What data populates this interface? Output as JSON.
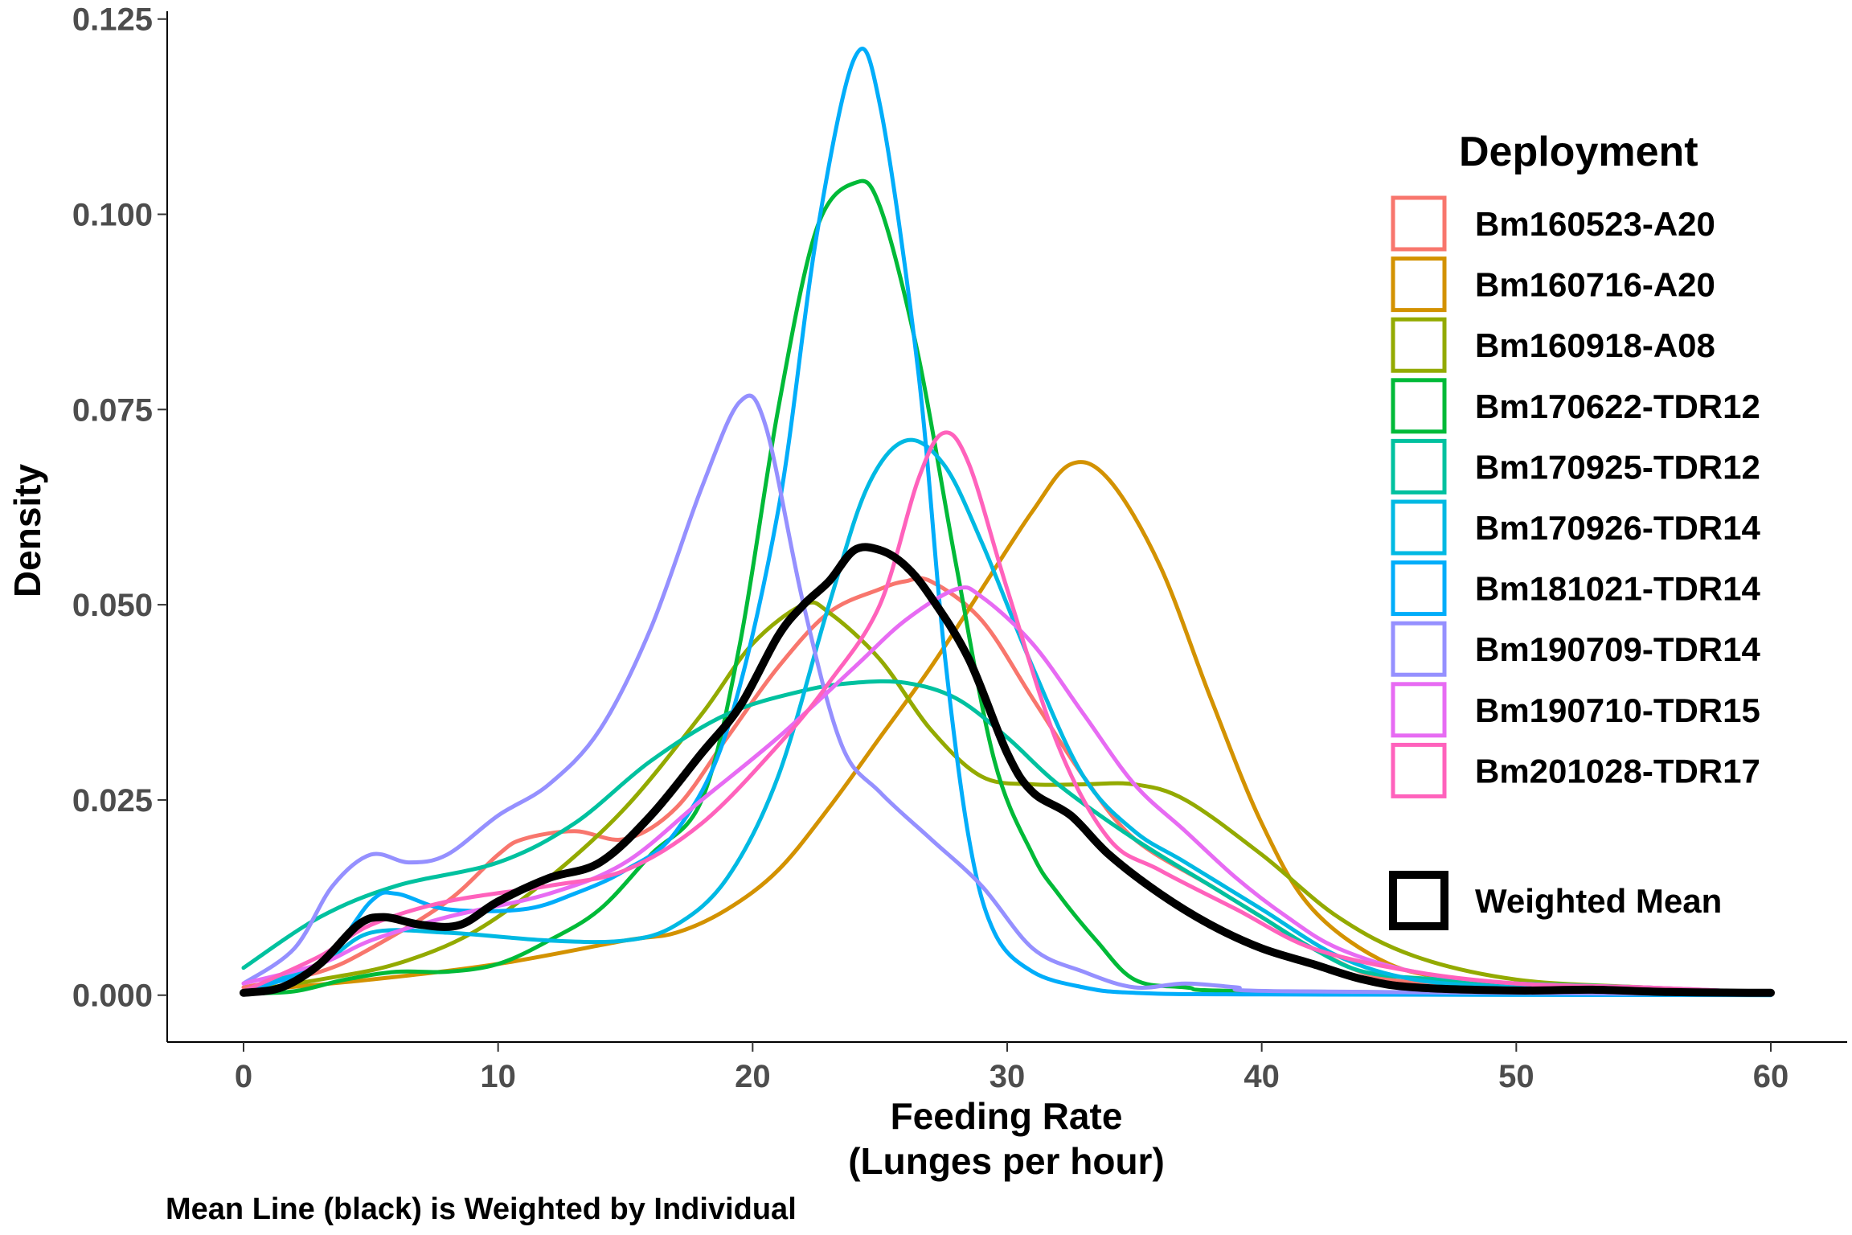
{
  "chart_data": {
    "type": "line",
    "xlabel_line1": "Feeding Rate",
    "xlabel_line2": "(Lunges per hour)",
    "ylabel": "Density",
    "caption": "Mean Line (black) is Weighted by Individual",
    "xlim": [
      -3,
      63
    ],
    "ylim": [
      -0.006,
      0.126
    ],
    "xticks": [
      0,
      10,
      20,
      30,
      40,
      50,
      60
    ],
    "xtick_labels": [
      "0",
      "10",
      "20",
      "30",
      "40",
      "50",
      "60"
    ],
    "yticks": [
      0,
      0.025,
      0.05,
      0.075,
      0.1,
      0.125
    ],
    "ytick_labels": [
      "0.000",
      "0.025",
      "0.050",
      "0.075",
      "0.100",
      "0.125"
    ],
    "grid": false,
    "legend": {
      "title": "Deployment",
      "placement": "right",
      "mean_label": "Weighted Mean"
    },
    "series": [
      {
        "name": "Bm160523-A20",
        "color": "#F8766D",
        "points": [
          [
            0,
            0.001
          ],
          [
            3,
            0.003
          ],
          [
            5,
            0.006
          ],
          [
            8,
            0.012
          ],
          [
            10,
            0.018
          ],
          [
            11,
            0.02
          ],
          [
            13,
            0.021
          ],
          [
            15,
            0.02
          ],
          [
            17,
            0.024
          ],
          [
            19,
            0.033
          ],
          [
            21,
            0.042
          ],
          [
            23,
            0.049
          ],
          [
            25,
            0.052
          ],
          [
            26,
            0.053
          ],
          [
            27,
            0.053
          ],
          [
            29,
            0.048
          ],
          [
            31,
            0.038
          ],
          [
            33,
            0.028
          ],
          [
            35,
            0.02
          ],
          [
            38,
            0.014
          ],
          [
            40,
            0.01
          ],
          [
            42,
            0.006
          ],
          [
            45,
            0.002
          ],
          [
            50,
            0.0015
          ],
          [
            53,
            0.001
          ],
          [
            57,
            0.0005
          ],
          [
            60,
            0.0002
          ]
        ]
      },
      {
        "name": "Bm160716-A20",
        "color": "#D39200",
        "points": [
          [
            0,
            0.0005
          ],
          [
            5,
            0.002
          ],
          [
            10,
            0.004
          ],
          [
            15,
            0.007
          ],
          [
            17,
            0.008
          ],
          [
            19,
            0.011
          ],
          [
            21,
            0.016
          ],
          [
            23,
            0.024
          ],
          [
            25,
            0.033
          ],
          [
            27,
            0.042
          ],
          [
            29,
            0.052
          ],
          [
            31,
            0.062
          ],
          [
            32.5,
            0.068
          ],
          [
            34,
            0.066
          ],
          [
            36,
            0.055
          ],
          [
            38,
            0.038
          ],
          [
            40,
            0.022
          ],
          [
            42,
            0.011
          ],
          [
            45,
            0.004
          ],
          [
            48,
            0.002
          ],
          [
            52,
            0.001
          ],
          [
            56,
            0.0005
          ],
          [
            60,
            0.0002
          ]
        ]
      },
      {
        "name": "Bm160918-A08",
        "color": "#93AA00",
        "points": [
          [
            0,
            0.0005
          ],
          [
            3,
            0.002
          ],
          [
            6,
            0.004
          ],
          [
            9,
            0.008
          ],
          [
            12,
            0.015
          ],
          [
            15,
            0.024
          ],
          [
            18,
            0.036
          ],
          [
            20,
            0.045
          ],
          [
            22,
            0.05
          ],
          [
            23,
            0.049
          ],
          [
            25,
            0.043
          ],
          [
            27,
            0.034
          ],
          [
            29,
            0.028
          ],
          [
            31,
            0.027
          ],
          [
            33,
            0.027
          ],
          [
            35,
            0.027
          ],
          [
            37,
            0.025
          ],
          [
            40,
            0.018
          ],
          [
            43,
            0.01
          ],
          [
            46,
            0.005
          ],
          [
            50,
            0.002
          ],
          [
            55,
            0.001
          ],
          [
            60,
            0.0003
          ]
        ]
      },
      {
        "name": "Bm170622-TDR12",
        "color": "#00BA38",
        "points": [
          [
            0,
            0.0002
          ],
          [
            2,
            0.0005
          ],
          [
            4,
            0.002
          ],
          [
            6,
            0.003
          ],
          [
            8,
            0.003
          ],
          [
            10,
            0.004
          ],
          [
            12,
            0.007
          ],
          [
            14,
            0.011
          ],
          [
            16,
            0.018
          ],
          [
            18,
            0.025
          ],
          [
            19.5,
            0.045
          ],
          [
            21,
            0.075
          ],
          [
            22.5,
            0.098
          ],
          [
            24,
            0.104
          ],
          [
            25,
            0.101
          ],
          [
            26.5,
            0.082
          ],
          [
            28,
            0.055
          ],
          [
            29.5,
            0.03
          ],
          [
            31,
            0.018
          ],
          [
            32,
            0.013
          ],
          [
            33.5,
            0.007
          ],
          [
            35,
            0.002
          ],
          [
            37,
            0.001
          ],
          [
            40,
            0.0005
          ],
          [
            60,
            0.0001
          ]
        ]
      },
      {
        "name": "Bm170925-TDR12",
        "color": "#00C19F",
        "points": [
          [
            0,
            0.0035
          ],
          [
            3,
            0.01
          ],
          [
            6,
            0.014
          ],
          [
            10,
            0.017
          ],
          [
            13,
            0.022
          ],
          [
            16,
            0.03
          ],
          [
            19,
            0.036
          ],
          [
            22,
            0.039
          ],
          [
            24,
            0.04
          ],
          [
            26,
            0.04
          ],
          [
            28,
            0.038
          ],
          [
            30,
            0.033
          ],
          [
            32,
            0.027
          ],
          [
            35,
            0.02
          ],
          [
            38,
            0.014
          ],
          [
            40,
            0.01
          ],
          [
            42,
            0.006
          ],
          [
            44,
            0.003
          ],
          [
            47,
            0.002
          ],
          [
            50,
            0.0015
          ],
          [
            55,
            0.001
          ],
          [
            60,
            0.0003
          ]
        ]
      },
      {
        "name": "Bm170926-TDR14",
        "color": "#00B9E3",
        "points": [
          [
            0,
            0.0005
          ],
          [
            3,
            0.004
          ],
          [
            5,
            0.008
          ],
          [
            8,
            0.008
          ],
          [
            12,
            0.007
          ],
          [
            15,
            0.007
          ],
          [
            17,
            0.009
          ],
          [
            19,
            0.015
          ],
          [
            21,
            0.028
          ],
          [
            23,
            0.05
          ],
          [
            24.5,
            0.065
          ],
          [
            26,
            0.071
          ],
          [
            27.5,
            0.068
          ],
          [
            29,
            0.058
          ],
          [
            31,
            0.042
          ],
          [
            33,
            0.028
          ],
          [
            35,
            0.021
          ],
          [
            37,
            0.017
          ],
          [
            40,
            0.011
          ],
          [
            43,
            0.005
          ],
          [
            46,
            0.002
          ],
          [
            50,
            0.001
          ],
          [
            55,
            0.0005
          ],
          [
            60,
            0.0002
          ]
        ]
      },
      {
        "name": "Bm181021-TDR14",
        "color": "#00ADFA",
        "points": [
          [
            0,
            0.0005
          ],
          [
            3,
            0.004
          ],
          [
            5,
            0.012
          ],
          [
            6,
            0.013
          ],
          [
            8,
            0.011
          ],
          [
            11,
            0.011
          ],
          [
            13,
            0.013
          ],
          [
            15,
            0.016
          ],
          [
            17,
            0.021
          ],
          [
            19,
            0.034
          ],
          [
            21,
            0.062
          ],
          [
            22.5,
            0.097
          ],
          [
            24,
            0.12
          ],
          [
            25,
            0.114
          ],
          [
            26.5,
            0.08
          ],
          [
            27.5,
            0.045
          ],
          [
            28.5,
            0.02
          ],
          [
            29.5,
            0.008
          ],
          [
            31,
            0.003
          ],
          [
            33,
            0.001
          ],
          [
            35,
            0.0003
          ],
          [
            40,
            0.0001
          ],
          [
            60,
            0.0
          ]
        ]
      },
      {
        "name": "Bm190709-TDR14",
        "color": "#9590FF",
        "points": [
          [
            0,
            0.0015
          ],
          [
            2,
            0.006
          ],
          [
            3.5,
            0.014
          ],
          [
            5,
            0.018
          ],
          [
            6.5,
            0.017
          ],
          [
            8,
            0.018
          ],
          [
            10,
            0.023
          ],
          [
            12,
            0.027
          ],
          [
            14,
            0.034
          ],
          [
            16,
            0.047
          ],
          [
            18,
            0.065
          ],
          [
            19.5,
            0.076
          ],
          [
            20.5,
            0.073
          ],
          [
            22,
            0.05
          ],
          [
            23.5,
            0.032
          ],
          [
            25,
            0.026
          ],
          [
            27,
            0.02
          ],
          [
            29,
            0.014
          ],
          [
            31,
            0.006
          ],
          [
            33,
            0.003
          ],
          [
            35,
            0.001
          ],
          [
            37,
            0.0015
          ],
          [
            39,
            0.001
          ],
          [
            41,
            0.0005
          ],
          [
            60,
            0.0001
          ]
        ]
      },
      {
        "name": "Bm190710-TDR15",
        "color": "#E76BF3",
        "points": [
          [
            0,
            0.0015
          ],
          [
            3,
            0.004
          ],
          [
            5,
            0.007
          ],
          [
            8,
            0.01
          ],
          [
            12,
            0.013
          ],
          [
            15,
            0.017
          ],
          [
            18,
            0.025
          ],
          [
            21,
            0.033
          ],
          [
            24,
            0.042
          ],
          [
            26,
            0.048
          ],
          [
            28,
            0.052
          ],
          [
            29,
            0.051
          ],
          [
            31,
            0.045
          ],
          [
            33,
            0.036
          ],
          [
            35,
            0.027
          ],
          [
            37,
            0.021
          ],
          [
            39,
            0.015
          ],
          [
            41,
            0.01
          ],
          [
            43,
            0.006
          ],
          [
            46,
            0.003
          ],
          [
            50,
            0.0015
          ],
          [
            55,
            0.001
          ],
          [
            60,
            0.0003
          ]
        ]
      },
      {
        "name": "Bm201028-TDR17",
        "color": "#FF62BC",
        "points": [
          [
            0,
            0.0005
          ],
          [
            3,
            0.005
          ],
          [
            5,
            0.009
          ],
          [
            8,
            0.012
          ],
          [
            12,
            0.014
          ],
          [
            15,
            0.016
          ],
          [
            18,
            0.022
          ],
          [
            21,
            0.032
          ],
          [
            23,
            0.04
          ],
          [
            25,
            0.05
          ],
          [
            26.5,
            0.066
          ],
          [
            27.5,
            0.072
          ],
          [
            28.5,
            0.068
          ],
          [
            30,
            0.052
          ],
          [
            32,
            0.032
          ],
          [
            34,
            0.02
          ],
          [
            36,
            0.016
          ],
          [
            39,
            0.011
          ],
          [
            42,
            0.006
          ],
          [
            46,
            0.003
          ],
          [
            50,
            0.0015
          ],
          [
            55,
            0.001
          ],
          [
            60,
            0.0003
          ]
        ]
      }
    ],
    "mean_series": {
      "name": "Weighted Mean",
      "color": "#000000",
      "points": [
        [
          0,
          0.0003
        ],
        [
          1.5,
          0.001
        ],
        [
          3,
          0.004
        ],
        [
          4.5,
          0.009
        ],
        [
          5.5,
          0.01
        ],
        [
          7,
          0.009
        ],
        [
          8.5,
          0.009
        ],
        [
          10,
          0.012
        ],
        [
          12,
          0.015
        ],
        [
          14,
          0.017
        ],
        [
          16,
          0.023
        ],
        [
          18,
          0.031
        ],
        [
          19.5,
          0.037
        ],
        [
          21,
          0.046
        ],
        [
          22,
          0.05
        ],
        [
          23,
          0.053
        ],
        [
          24,
          0.057
        ],
        [
          25,
          0.057
        ],
        [
          26,
          0.055
        ],
        [
          27,
          0.051
        ],
        [
          28.5,
          0.043
        ],
        [
          30,
          0.031
        ],
        [
          31,
          0.026
        ],
        [
          32.5,
          0.023
        ],
        [
          34,
          0.018
        ],
        [
          36,
          0.013
        ],
        [
          38,
          0.009
        ],
        [
          40,
          0.006
        ],
        [
          42,
          0.004
        ],
        [
          44,
          0.002
        ],
        [
          46,
          0.001
        ],
        [
          50,
          0.0006
        ],
        [
          53,
          0.0007
        ],
        [
          56,
          0.0004
        ],
        [
          60,
          0.0003
        ]
      ]
    }
  }
}
